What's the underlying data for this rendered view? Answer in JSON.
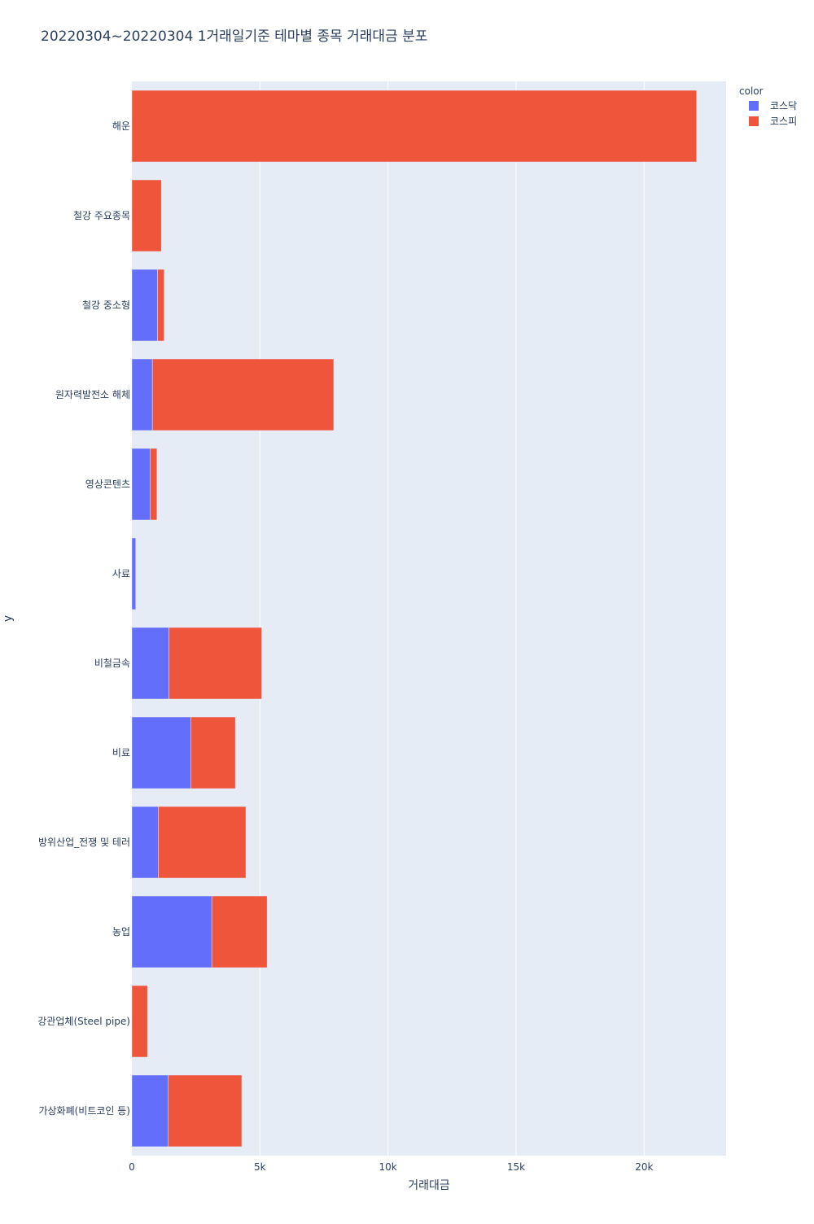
{
  "chart_data": {
    "type": "bar",
    "orientation": "horizontal",
    "barmode": "stack",
    "title": "20220304~20220304 1거래일기준 테마별 종목 거래대금 분포",
    "xlabel": "거래대금",
    "ylabel": "y",
    "xlim": [
      0,
      23200
    ],
    "xticks": [
      0,
      5000,
      10000,
      15000,
      20000
    ],
    "xtick_labels": [
      "0",
      "5k",
      "10k",
      "15k",
      "20k"
    ],
    "grid": true,
    "legend": {
      "title": "color",
      "placement": "top-right"
    },
    "categories": [
      "해운",
      "철강 주요종목",
      "철강 중소형",
      "원자력발전소 해체",
      "영상콘텐츠",
      "사료",
      "비철금속",
      "비료",
      "방위산업_전쟁 및 테러",
      "농업",
      "강관업체(Steel pipe)",
      "가상화폐(비트코인 등)"
    ],
    "series": [
      {
        "name": "코스닥",
        "color": "#636efa",
        "values": [
          0,
          0,
          1000,
          800,
          720,
          150,
          1450,
          2300,
          1030,
          3120,
          0,
          1420
        ]
      },
      {
        "name": "코스피",
        "color": "#ef553b",
        "values": [
          22050,
          1150,
          260,
          7080,
          260,
          0,
          3620,
          1740,
          3420,
          2160,
          610,
          2870
        ]
      }
    ]
  }
}
